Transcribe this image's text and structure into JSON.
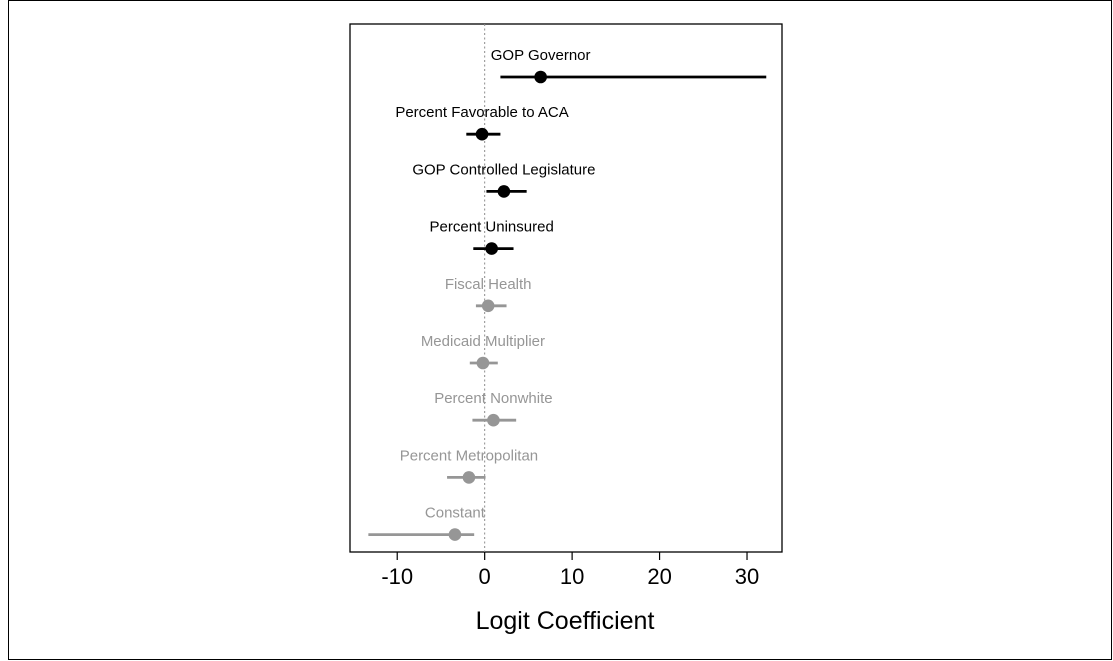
{
  "chart_data": {
    "type": "scatter",
    "subtype": "coefficient-plot",
    "title": "",
    "xlabel": "Logit Coefficient",
    "ylabel": "",
    "xlim": [
      -15.4,
      34
    ],
    "xticks": [
      -10,
      0,
      10,
      20,
      30
    ],
    "tick_labels": [
      "-10",
      "0",
      "10",
      "20",
      "30"
    ],
    "reference_line": {
      "x": 0,
      "style": "dotted"
    },
    "grid": false,
    "legend": "none",
    "colors": {
      "significant": "#000000",
      "not_significant": "#969696",
      "reference": "#8c8c8c"
    },
    "points": [
      {
        "label": "GOP Governor",
        "estimate": 6.4,
        "ci": [
          1.8,
          32.2
        ],
        "significant": true
      },
      {
        "label": "Percent Favorable to ACA",
        "estimate": -0.3,
        "ci": [
          -2.1,
          1.8
        ],
        "significant": true
      },
      {
        "label": "GOP Controlled Legislature",
        "estimate": 2.2,
        "ci": [
          0.2,
          4.8
        ],
        "significant": true
      },
      {
        "label": "Percent Uninsured",
        "estimate": 0.8,
        "ci": [
          -1.3,
          3.3
        ],
        "significant": true
      },
      {
        "label": "Fiscal Health",
        "estimate": 0.4,
        "ci": [
          -1.0,
          2.5
        ],
        "significant": false
      },
      {
        "label": "Medicaid Multiplier",
        "estimate": -0.2,
        "ci": [
          -1.7,
          1.5
        ],
        "significant": false
      },
      {
        "label": "Percent Nonwhite",
        "estimate": 1.0,
        "ci": [
          -1.4,
          3.6
        ],
        "significant": false
      },
      {
        "label": "Percent Metropolitan",
        "estimate": -1.8,
        "ci": [
          -4.3,
          0.1
        ],
        "significant": false
      },
      {
        "label": "Constant",
        "estimate": -3.4,
        "ci": [
          -13.3,
          -1.2
        ],
        "significant": false
      }
    ]
  }
}
